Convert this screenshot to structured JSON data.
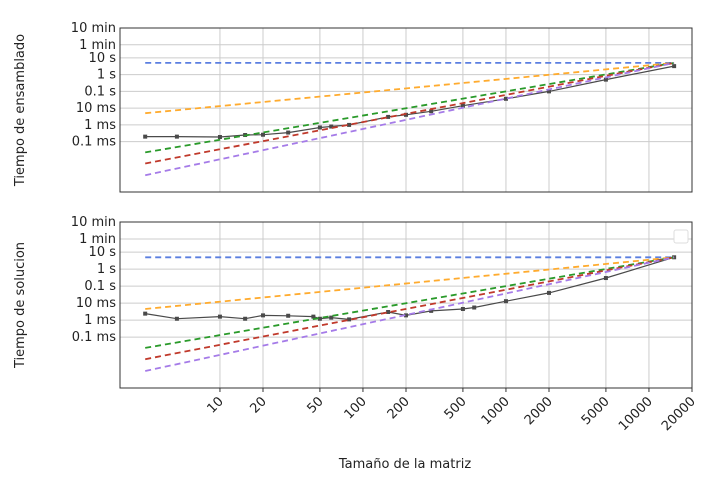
{
  "xlabel": "Tamaño de la matriz",
  "x_ticks": [
    "10",
    "20",
    "50",
    "100",
    "200",
    "500",
    "1000",
    "2000",
    "5000",
    "10000",
    "20000"
  ],
  "colors": {
    "measured": "#4a4a4a",
    "blue": "#5b7fe0",
    "orange": "#ffab2e",
    "green": "#2a9a2a",
    "red": "#c0392b",
    "purple": "#a57be8",
    "grid": "#cccccc",
    "axis": "#333333"
  },
  "chart_data": [
    {
      "type": "line",
      "ylabel": "Tiempo de ensamblado",
      "x_scale": "log",
      "y_scale": "log",
      "x_range": [
        2,
        20000
      ],
      "y_range": [
        1e-07,
        600
      ],
      "y_ticks": [
        "10 min",
        "1 min",
        "10 s",
        "1 s",
        "0.1 s",
        "10 ms",
        "1 ms",
        "0.1 ms"
      ],
      "y_tick_values": [
        600,
        60,
        10,
        1,
        0.1,
        0.01,
        0.001,
        0.0001
      ],
      "grid": true,
      "series": [
        {
          "role": "measured",
          "x": [
            3,
            5,
            10,
            15,
            20,
            30,
            50,
            60,
            80,
            150,
            200,
            300,
            500,
            1000,
            2000,
            5000,
            15000
          ],
          "y": [
            0.0002,
            0.0002,
            0.00019,
            0.00025,
            0.00026,
            0.00035,
            0.0007,
            0.0008,
            0.001,
            0.003,
            0.004,
            0.0065,
            0.014,
            0.036,
            0.1,
            0.5,
            3.2
          ]
        },
        {
          "role": "blue",
          "x": [
            3,
            15000
          ],
          "y": [
            5,
            5
          ]
        },
        {
          "role": "orange",
          "x": [
            3,
            15000
          ],
          "y": [
            0.005,
            5
          ]
        },
        {
          "role": "green",
          "x": [
            3,
            15000
          ],
          "y": [
            2.3e-05,
            5
          ]
        },
        {
          "role": "red",
          "x": [
            3,
            15000
          ],
          "y": [
            5e-06,
            5
          ]
        },
        {
          "role": "purple",
          "x": [
            3,
            15000
          ],
          "y": [
            1e-06,
            5
          ]
        }
      ]
    },
    {
      "type": "line",
      "ylabel": "Tiempo de solucion",
      "x_scale": "log",
      "y_scale": "log",
      "x_range": [
        2,
        20000
      ],
      "y_range": [
        1e-07,
        600
      ],
      "y_ticks": [
        "10 min",
        "1 min",
        "10 s",
        "1 s",
        "0.1 s",
        "10 ms",
        "1 ms",
        "0.1 ms"
      ],
      "y_tick_values": [
        600,
        60,
        10,
        1,
        0.1,
        0.01,
        0.001,
        0.0001
      ],
      "grid": true,
      "legend": "top-right",
      "series": [
        {
          "role": "measured",
          "x": [
            3,
            5,
            10,
            15,
            20,
            30,
            45,
            50,
            60,
            80,
            150,
            200,
            300,
            500,
            600,
            1000,
            2000,
            5000,
            15000
          ],
          "y": [
            0.0024,
            0.0012,
            0.0016,
            0.0012,
            0.0019,
            0.0018,
            0.0016,
            0.0012,
            0.0014,
            0.0011,
            0.003,
            0.0019,
            0.0035,
            0.0045,
            0.0055,
            0.013,
            0.04,
            0.3,
            5
          ]
        },
        {
          "role": "blue",
          "x": [
            3,
            15000
          ],
          "y": [
            5,
            5
          ]
        },
        {
          "role": "orange",
          "x": [
            3,
            15000
          ],
          "y": [
            0.0045,
            5
          ]
        },
        {
          "role": "green",
          "x": [
            3,
            15000
          ],
          "y": [
            2.3e-05,
            5
          ]
        },
        {
          "role": "red",
          "x": [
            3,
            15000
          ],
          "y": [
            5e-06,
            5
          ]
        },
        {
          "role": "purple",
          "x": [
            3,
            15000
          ],
          "y": [
            1e-06,
            5
          ]
        }
      ]
    }
  ]
}
